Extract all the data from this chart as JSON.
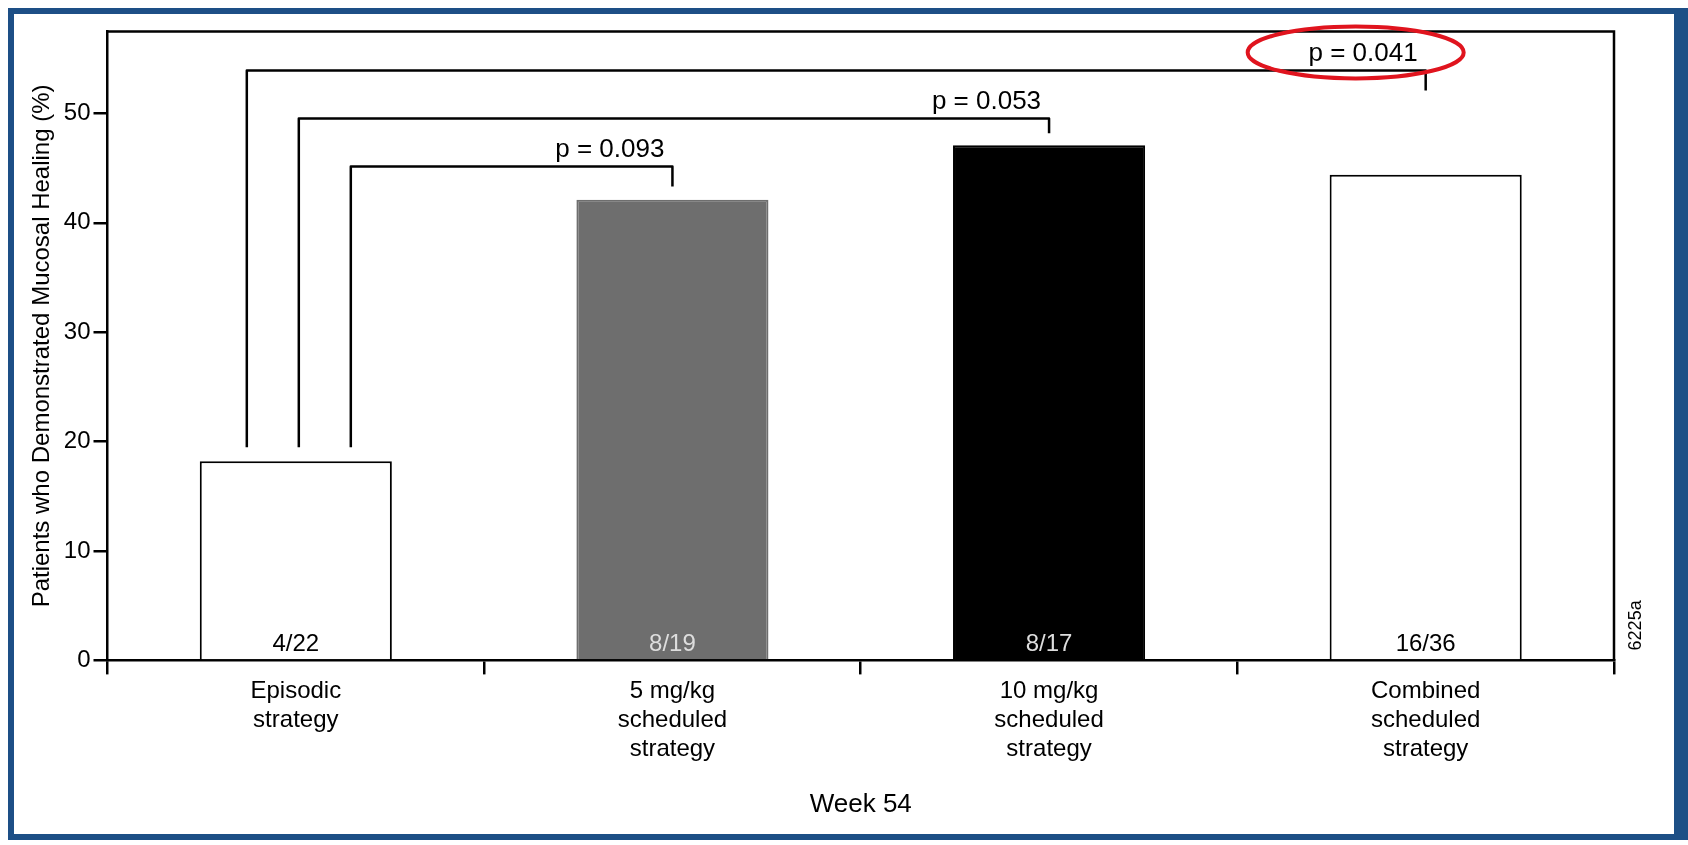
{
  "chart_data": {
    "type": "bar",
    "xlabel": "Week 54",
    "ylabel": "Patients who Demonstrated Mucosal Healing (%)",
    "categories": [
      "Episodic strategy",
      "5 mg/kg scheduled strategy",
      "10 mg/kg scheduled strategy",
      "Combined scheduled strategy"
    ],
    "values": [
      18.2,
      42.1,
      47.1,
      44.4
    ],
    "colors": [
      "#ffffff",
      "#6e6e6e",
      "#000000",
      "#ffffff"
    ],
    "value_labels": [
      "4/22",
      "8/19",
      "8/17",
      "16/36"
    ],
    "ylim": [
      0,
      57.5
    ],
    "yticks": [
      0,
      10,
      20,
      30,
      40,
      50
    ],
    "grid": false,
    "legend": false,
    "annotations": [
      "p = 0.093",
      "p = 0.053",
      "p = 0.041",
      "6225a"
    ]
  }
}
